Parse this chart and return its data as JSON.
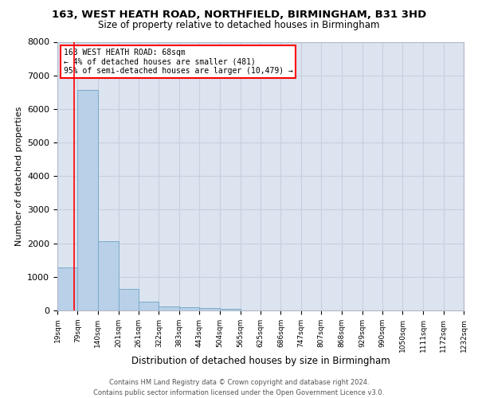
{
  "title_line1": "163, WEST HEATH ROAD, NORTHFIELD, BIRMINGHAM, B31 3HD",
  "title_line2": "Size of property relative to detached houses in Birmingham",
  "xlabel": "Distribution of detached houses by size in Birmingham",
  "ylabel": "Number of detached properties",
  "bar_color": "#b8d0e8",
  "bar_edge_color": "#7aaac8",
  "grid_color": "#c8d0de",
  "bg_color": "#dce4f0",
  "bins": [
    19,
    79,
    140,
    201,
    261,
    322,
    383,
    443,
    504,
    565,
    625,
    686,
    747,
    807,
    868,
    929,
    990,
    1050,
    1111,
    1172,
    1232
  ],
  "counts": [
    1290,
    6560,
    2070,
    640,
    250,
    130,
    100,
    60,
    50,
    0,
    0,
    0,
    0,
    0,
    0,
    0,
    0,
    0,
    0,
    0
  ],
  "ylim": [
    0,
    8000
  ],
  "yticks": [
    0,
    1000,
    2000,
    3000,
    4000,
    5000,
    6000,
    7000,
    8000
  ],
  "property_line_x": 68,
  "annotation_title": "163 WEST HEATH ROAD: 68sqm",
  "annotation_line2": "← 4% of detached houses are smaller (481)",
  "annotation_line3": "95% of semi-detached houses are larger (10,479) →",
  "footer_line1": "Contains HM Land Registry data © Crown copyright and database right 2024.",
  "footer_line2": "Contains public sector information licensed under the Open Government Licence v3.0."
}
